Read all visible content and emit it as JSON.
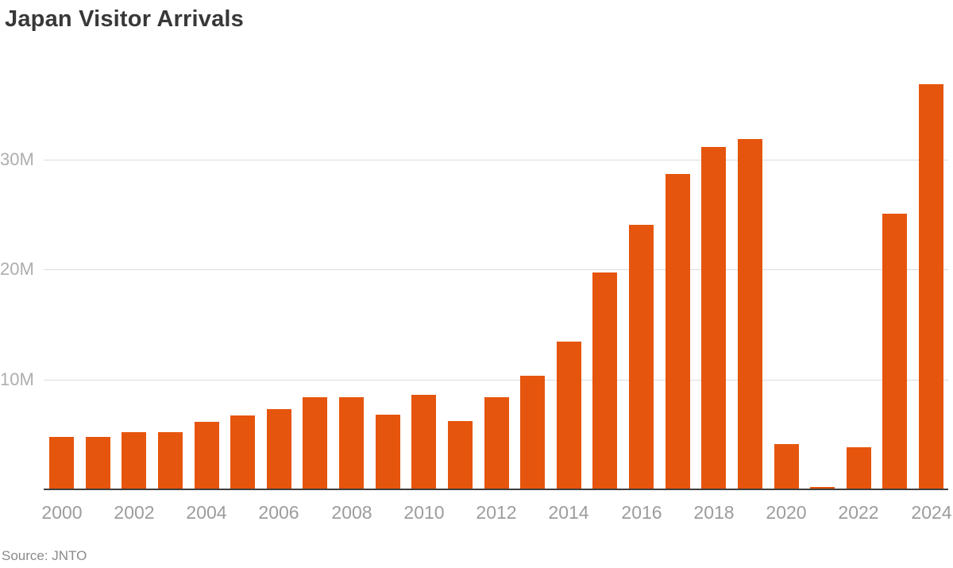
{
  "source": "Source: JNTO",
  "colors": {
    "bar": "#E6550D",
    "background": "#FFFFFF",
    "title_text": "#383838",
    "y_tick_text": "#AEAEAE",
    "x_tick_text": "#9C9C9C",
    "gridline": "#DCDCDC",
    "axis_line": "#3F3F3F",
    "source_text": "#8A8A8A"
  },
  "chart_data": {
    "type": "bar",
    "title": "Japan Visitor Arrivals",
    "categories": [
      2000,
      2001,
      2002,
      2003,
      2004,
      2005,
      2006,
      2007,
      2008,
      2009,
      2010,
      2011,
      2012,
      2013,
      2014,
      2015,
      2016,
      2017,
      2018,
      2019,
      2020,
      2021,
      2022,
      2023,
      2024
    ],
    "values": [
      4.76,
      4.77,
      5.24,
      5.21,
      6.14,
      6.73,
      7.33,
      8.35,
      8.35,
      6.79,
      8.61,
      6.22,
      8.36,
      10.36,
      13.41,
      19.74,
      24.04,
      28.69,
      31.19,
      31.88,
      4.12,
      0.25,
      3.83,
      25.07,
      36.87
    ],
    "value_unit": "M",
    "xlabel": "",
    "ylabel": "",
    "ylim": [
      0,
      39.5
    ],
    "grid": "horizontal",
    "legend": "none",
    "y_ticks": [
      {
        "value": 10,
        "label": "10M"
      },
      {
        "value": 20,
        "label": "20M"
      },
      {
        "value": 30,
        "label": "30M"
      }
    ],
    "x_tick_labels": [
      "2000",
      "2002",
      "2004",
      "2006",
      "2008",
      "2010",
      "2012",
      "2014",
      "2016",
      "2018",
      "2020",
      "2022",
      "2024"
    ]
  }
}
